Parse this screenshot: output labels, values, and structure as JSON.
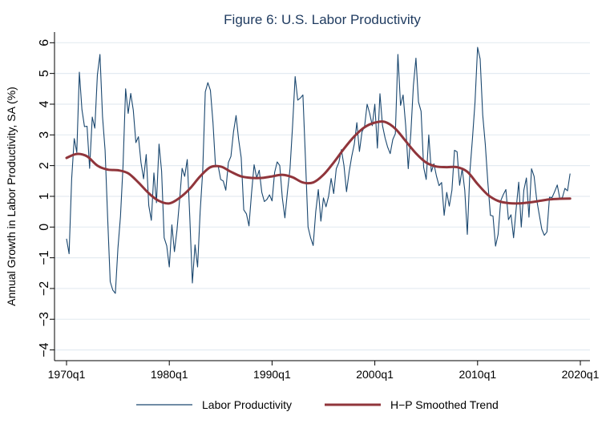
{
  "chart_data": {
    "type": "line",
    "title": "Figure 6: U.S. Labor Productivity",
    "xlabel": "",
    "ylabel": "Annual Growth in Labor Productivity, SA (%)",
    "ylim": [
      -4,
      6
    ],
    "yticks": [
      6,
      5,
      4,
      3,
      2,
      1,
      0,
      -1,
      -2,
      -3,
      -4
    ],
    "ytick_labels": [
      "6",
      "5",
      "4",
      "3",
      "2",
      "1",
      "0",
      "−1",
      "−2",
      "−3",
      "−4"
    ],
    "xlim": [
      1970,
      2020
    ],
    "xticks": [
      1970,
      1980,
      1990,
      2000,
      2010,
      2020
    ],
    "xtick_labels": [
      "1970q1",
      "1980q1",
      "1990q1",
      "2000q1",
      "2010q1",
      "2020q1"
    ],
    "grid": true,
    "legend_position": "bottom",
    "series": [
      {
        "name": "Labor Productivity",
        "color": "#1a476f",
        "start": 1970,
        "frequency": "quarterly",
        "values": [
          -0.38,
          -0.87,
          1.57,
          2.88,
          2.43,
          5.04,
          3.83,
          3.27,
          3.28,
          1.91,
          3.58,
          3.22,
          4.96,
          5.62,
          3.6,
          2.5,
          0.3,
          -1.78,
          -2.05,
          -2.16,
          -0.7,
          0.35,
          2.0,
          4.5,
          3.7,
          4.35,
          3.8,
          2.75,
          2.94,
          2.1,
          1.57,
          2.36,
          0.7,
          0.22,
          1.76,
          0.79,
          2.7,
          1.82,
          -0.35,
          -0.61,
          -1.3,
          0.07,
          -0.8,
          -0.1,
          0.87,
          1.91,
          1.65,
          2.2,
          0.3,
          -1.82,
          -0.58,
          -1.3,
          0.5,
          1.83,
          4.4,
          4.7,
          4.45,
          3.4,
          1.96,
          2.0,
          1.55,
          1.5,
          1.2,
          2.1,
          2.3,
          3.1,
          3.63,
          2.85,
          2.26,
          0.56,
          0.43,
          0.04,
          1.1,
          2.03,
          1.6,
          1.85,
          1.13,
          0.83,
          0.9,
          1.05,
          0.85,
          1.78,
          2.12,
          2.0,
          0.95,
          0.3,
          1.15,
          1.9,
          3.3,
          4.9,
          4.13,
          4.2,
          4.3,
          2.2,
          0.0,
          -0.35,
          -0.6,
          0.5,
          1.22,
          0.19,
          0.95,
          0.66,
          1.0,
          1.58,
          1.09,
          1.9,
          2.1,
          2.52,
          2.0,
          1.15,
          1.8,
          2.3,
          2.7,
          3.4,
          2.46,
          3.1,
          3.27,
          4.0,
          3.7,
          3.3,
          4.0,
          2.57,
          4.34,
          3.3,
          2.9,
          2.6,
          2.39,
          2.85,
          3.04,
          5.62,
          3.96,
          4.3,
          3.3,
          1.9,
          3.04,
          4.6,
          5.5,
          4.07,
          3.77,
          1.95,
          1.55,
          3.0,
          1.8,
          2.06,
          1.66,
          1.35,
          1.45,
          0.38,
          1.13,
          0.68,
          1.2,
          2.5,
          2.45,
          1.36,
          1.9,
          1.2,
          -0.24,
          1.8,
          2.88,
          4.07,
          5.85,
          5.47,
          3.65,
          2.7,
          1.45,
          0.38,
          0.36,
          -0.62,
          -0.24,
          0.85,
          1.06,
          1.22,
          0.24,
          0.4,
          -0.35,
          0.59,
          1.46,
          0.0,
          1.2,
          1.6,
          0.32,
          1.9,
          1.65,
          0.9,
          0.41,
          -0.07,
          -0.27,
          -0.16,
          0.97,
          0.96,
          1.15,
          1.37,
          0.93,
          0.96,
          1.26,
          1.18,
          1.74
        ]
      },
      {
        "name": "H−P Smoothed Trend",
        "color": "#90353b",
        "x": [
          1970,
          1971,
          1972,
          1973,
          1974,
          1975,
          1976,
          1977,
          1978,
          1979,
          1980,
          1981,
          1982,
          1983,
          1984,
          1985,
          1986,
          1987,
          1988,
          1989,
          1990,
          1991,
          1992,
          1993,
          1994,
          1995,
          1996,
          1997,
          1998,
          1999,
          2000,
          2001,
          2002,
          2003,
          2004,
          2005,
          2006,
          2007,
          2008,
          2009,
          2010,
          2011,
          2012,
          2013,
          2014,
          2015,
          2016,
          2017,
          2018,
          2019
        ],
        "values": [
          2.25,
          2.38,
          2.3,
          2.0,
          1.87,
          1.85,
          1.75,
          1.45,
          1.1,
          0.85,
          0.77,
          0.95,
          1.25,
          1.65,
          1.95,
          1.97,
          1.8,
          1.65,
          1.6,
          1.6,
          1.65,
          1.7,
          1.62,
          1.45,
          1.45,
          1.7,
          2.1,
          2.55,
          2.95,
          3.25,
          3.4,
          3.42,
          3.2,
          2.8,
          2.4,
          2.1,
          1.97,
          1.95,
          1.95,
          1.8,
          1.4,
          1.05,
          0.85,
          0.78,
          0.77,
          0.8,
          0.85,
          0.9,
          0.92,
          0.93
        ]
      }
    ]
  }
}
